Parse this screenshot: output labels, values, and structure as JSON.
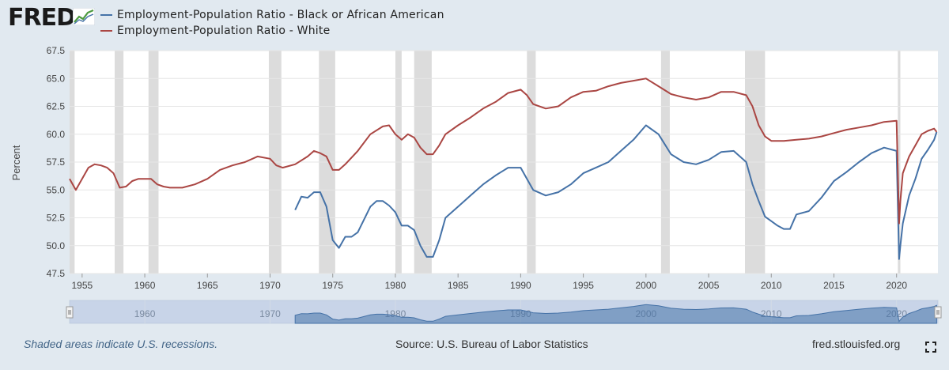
{
  "header": {
    "logo_text": "FRED",
    "logo_icon": "line-graph-icon"
  },
  "footer": {
    "recession_note": "Shaded areas indicate U.S. recessions.",
    "source": "Source: U.S. Bureau of Labor Statistics",
    "site": "fred.stlouisfed.org",
    "fullscreen_icon": "fullscreen-icon"
  },
  "colors": {
    "black_series": "#4572a7",
    "white_series": "#aa4643",
    "recession": "#dcdcdc",
    "navigator_fill": "#b6c6e0"
  },
  "chart_data": {
    "type": "line",
    "title": "",
    "xlabel": "",
    "ylabel": "Percent",
    "xlim": [
      1954.0,
      2023.3
    ],
    "ylim": [
      47.5,
      67.5
    ],
    "y_ticks": [
      47.5,
      50.0,
      52.5,
      55.0,
      57.5,
      60.0,
      62.5,
      65.0,
      67.5
    ],
    "y_tick_labels": [
      "47.5",
      "50.0",
      "52.5",
      "55.0",
      "57.5",
      "60.0",
      "62.5",
      "65.0",
      "67.5"
    ],
    "x_ticks": [
      1955,
      1960,
      1965,
      1970,
      1975,
      1980,
      1985,
      1990,
      1995,
      2000,
      2005,
      2010,
      2015,
      2020
    ],
    "x_tick_labels": [
      "1955",
      "1960",
      "1965",
      "1970",
      "1975",
      "1980",
      "1985",
      "1990",
      "1995",
      "2000",
      "2005",
      "2010",
      "2015",
      "2020"
    ],
    "grid": true,
    "legend_position": "top-left",
    "recessions": [
      [
        1953.6,
        1954.4
      ],
      [
        1957.6,
        1958.3
      ],
      [
        1960.3,
        1961.1
      ],
      [
        1969.9,
        1970.9
      ],
      [
        1973.9,
        1975.2
      ],
      [
        1980.0,
        1980.5
      ],
      [
        1981.5,
        1982.9
      ],
      [
        1990.5,
        1991.2
      ],
      [
        2001.2,
        2001.9
      ],
      [
        2007.9,
        2009.5
      ],
      [
        2020.1,
        2020.3
      ]
    ],
    "series": [
      {
        "name": "Employment-Population Ratio - Black or African American",
        "x": [
          1972.0,
          1972.5,
          1973.0,
          1973.5,
          1974.0,
          1974.5,
          1975.0,
          1975.5,
          1976.0,
          1976.5,
          1977.0,
          1978.0,
          1978.5,
          1979.0,
          1979.5,
          1980.0,
          1980.5,
          1981.0,
          1981.5,
          1982.0,
          1982.5,
          1983.0,
          1983.5,
          1984.0,
          1985.0,
          1986.0,
          1987.0,
          1988.0,
          1989.0,
          1990.0,
          1990.5,
          1991.0,
          1992.0,
          1993.0,
          1994.0,
          1995.0,
          1996.0,
          1997.0,
          1998.0,
          1999.0,
          2000.0,
          2001.0,
          2002.0,
          2003.0,
          2004.0,
          2005.0,
          2006.0,
          2007.0,
          2008.0,
          2008.5,
          2009.0,
          2009.5,
          2010.0,
          2010.5,
          2011.0,
          2011.5,
          2012.0,
          2013.0,
          2014.0,
          2015.0,
          2016.0,
          2017.0,
          2018.0,
          2019.0,
          2020.0,
          2020.2,
          2020.3,
          2020.5,
          2021.0,
          2021.5,
          2022.0,
          2022.5,
          2023.0,
          2023.2
        ],
        "values": [
          53.2,
          54.4,
          54.3,
          54.8,
          54.8,
          53.5,
          50.5,
          49.8,
          50.8,
          50.8,
          51.2,
          53.5,
          54.0,
          54.0,
          53.6,
          53.0,
          51.8,
          51.8,
          51.4,
          50.0,
          49.0,
          49.0,
          50.5,
          52.5,
          53.5,
          54.5,
          55.5,
          56.3,
          57.0,
          57.0,
          56.0,
          55.0,
          54.5,
          54.8,
          55.5,
          56.5,
          57.0,
          57.5,
          58.5,
          59.5,
          60.8,
          60.0,
          58.2,
          57.5,
          57.3,
          57.7,
          58.4,
          58.5,
          57.5,
          55.5,
          54.0,
          52.6,
          52.2,
          51.8,
          51.5,
          51.5,
          52.8,
          53.1,
          54.3,
          55.8,
          56.6,
          57.5,
          58.3,
          58.8,
          58.5,
          48.8,
          50.0,
          52.0,
          54.5,
          56.0,
          57.8,
          58.6,
          59.5,
          60.2
        ]
      },
      {
        "name": "Employment-Population Ratio - White",
        "x": [
          1954.0,
          1954.5,
          1955.0,
          1955.5,
          1956.0,
          1956.5,
          1957.0,
          1957.5,
          1958.0,
          1958.5,
          1959.0,
          1959.5,
          1960.0,
          1960.5,
          1961.0,
          1961.5,
          1962.0,
          1963.0,
          1964.0,
          1965.0,
          1966.0,
          1967.0,
          1968.0,
          1969.0,
          1970.0,
          1970.5,
          1971.0,
          1972.0,
          1973.0,
          1973.5,
          1974.0,
          1974.5,
          1975.0,
          1975.5,
          1976.0,
          1977.0,
          1978.0,
          1979.0,
          1979.5,
          1980.0,
          1980.5,
          1981.0,
          1981.5,
          1982.0,
          1982.5,
          1983.0,
          1983.5,
          1984.0,
          1985.0,
          1986.0,
          1987.0,
          1988.0,
          1989.0,
          1990.0,
          1990.5,
          1991.0,
          1992.0,
          1993.0,
          1994.0,
          1995.0,
          1996.0,
          1997.0,
          1998.0,
          1999.0,
          2000.0,
          2001.0,
          2002.0,
          2003.0,
          2004.0,
          2005.0,
          2006.0,
          2007.0,
          2008.0,
          2008.5,
          2009.0,
          2009.5,
          2010.0,
          2011.0,
          2012.0,
          2013.0,
          2014.0,
          2015.0,
          2016.0,
          2017.0,
          2018.0,
          2019.0,
          2020.0,
          2020.2,
          2020.3,
          2020.5,
          2021.0,
          2021.5,
          2022.0,
          2022.5,
          2023.0,
          2023.2
        ],
        "values": [
          56.0,
          55.0,
          56.0,
          57.0,
          57.3,
          57.2,
          57.0,
          56.5,
          55.2,
          55.3,
          55.8,
          56.0,
          56.0,
          56.0,
          55.5,
          55.3,
          55.2,
          55.2,
          55.5,
          56.0,
          56.8,
          57.2,
          57.5,
          58.0,
          57.8,
          57.2,
          57.0,
          57.3,
          58.0,
          58.5,
          58.3,
          58.0,
          56.8,
          56.8,
          57.3,
          58.5,
          60.0,
          60.7,
          60.8,
          60.0,
          59.5,
          60.0,
          59.7,
          58.8,
          58.2,
          58.2,
          59.0,
          60.0,
          60.8,
          61.5,
          62.3,
          62.9,
          63.7,
          64.0,
          63.5,
          62.7,
          62.3,
          62.5,
          63.3,
          63.8,
          63.9,
          64.3,
          64.6,
          64.8,
          65.0,
          64.3,
          63.6,
          63.3,
          63.1,
          63.3,
          63.8,
          63.8,
          63.5,
          62.5,
          60.8,
          59.8,
          59.4,
          59.4,
          59.5,
          59.6,
          59.8,
          60.1,
          60.4,
          60.6,
          60.8,
          61.1,
          61.2,
          52.0,
          54.0,
          56.5,
          58.0,
          59.0,
          60.0,
          60.3,
          60.5,
          60.2
        ]
      }
    ],
    "navigator": {
      "x_ticks": [
        1960,
        1970,
        1980,
        1990,
        2000,
        2010,
        2020
      ],
      "x_tick_labels": [
        "1960",
        "1970",
        "1980",
        "1990",
        "2000",
        "2010",
        "2020"
      ]
    }
  }
}
